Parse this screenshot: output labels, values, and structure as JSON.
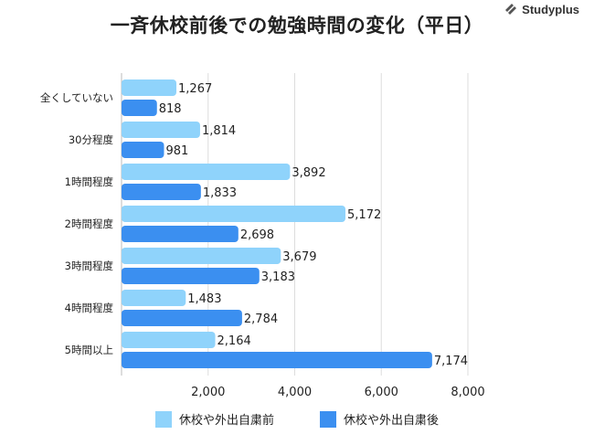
{
  "title": "一斉休校前後での勉強時間の変化（平日）",
  "brand": {
    "name": "Studyplus",
    "icon": "studyplus-logo-icon"
  },
  "chart_data": {
    "type": "bar",
    "orientation": "horizontal",
    "categories": [
      "全くしていない",
      "30分程度",
      "1時間程度",
      "2時間程度",
      "3時間程度",
      "4時間程度",
      "5時間以上"
    ],
    "series": [
      {
        "name": "休校や外出自粛前",
        "color": "#8fd3fb",
        "values": [
          1267,
          1814,
          3892,
          5172,
          3679,
          1483,
          2164
        ],
        "labels": [
          "1,267",
          "1,814",
          "3,892",
          "5,172",
          "3,679",
          "1,483",
          "2,164"
        ]
      },
      {
        "name": "休校や外出自粛後",
        "color": "#3b8ff0",
        "values": [
          818,
          981,
          1833,
          2698,
          3183,
          2784,
          7174
        ],
        "labels": [
          "818",
          "981",
          "1,833",
          "2,698",
          "3,183",
          "2,784",
          "7,174"
        ]
      }
    ],
    "xlim": [
      0,
      8000
    ],
    "xticks": [
      2000,
      4000,
      6000,
      8000
    ],
    "xtick_labels": [
      "2,000",
      "4,000",
      "6,000",
      "8,000"
    ],
    "grid": true,
    "legend_position": "bottom"
  }
}
